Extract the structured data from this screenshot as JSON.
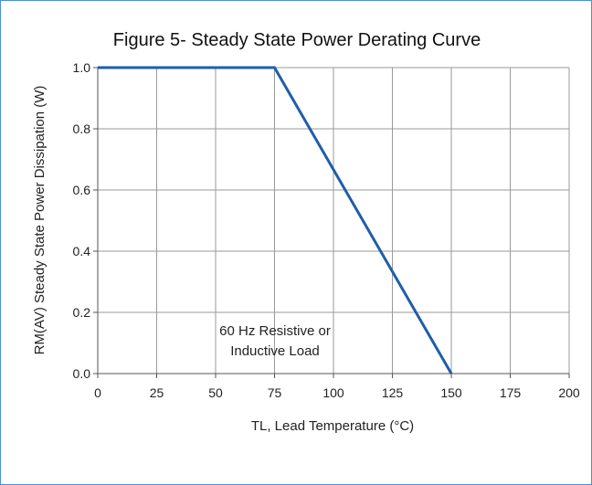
{
  "chart_data": {
    "type": "line",
    "title": "Figure 5- Steady State Power Derating Curve",
    "xlabel": "TL, Lead Temperature (°C)",
    "ylabel": "RM(AV) Steady State Power Dissipation (W)",
    "xlim": [
      0,
      200
    ],
    "ylim": [
      0,
      1.0
    ],
    "xticks": [
      "0",
      "25",
      "50",
      "75",
      "100",
      "125",
      "150",
      "175",
      "200"
    ],
    "yticks": [
      "0.0",
      "0.2",
      "0.4",
      "0.6",
      "0.8",
      "1.0"
    ],
    "grid": true,
    "series": [
      {
        "x": [
          0,
          75,
          150
        ],
        "y": [
          1.0,
          1.0,
          0.0
        ],
        "color": "#1f5ea8"
      }
    ],
    "annotation": [
      "60 Hz Resistive or",
      "Inductive Load"
    ]
  }
}
